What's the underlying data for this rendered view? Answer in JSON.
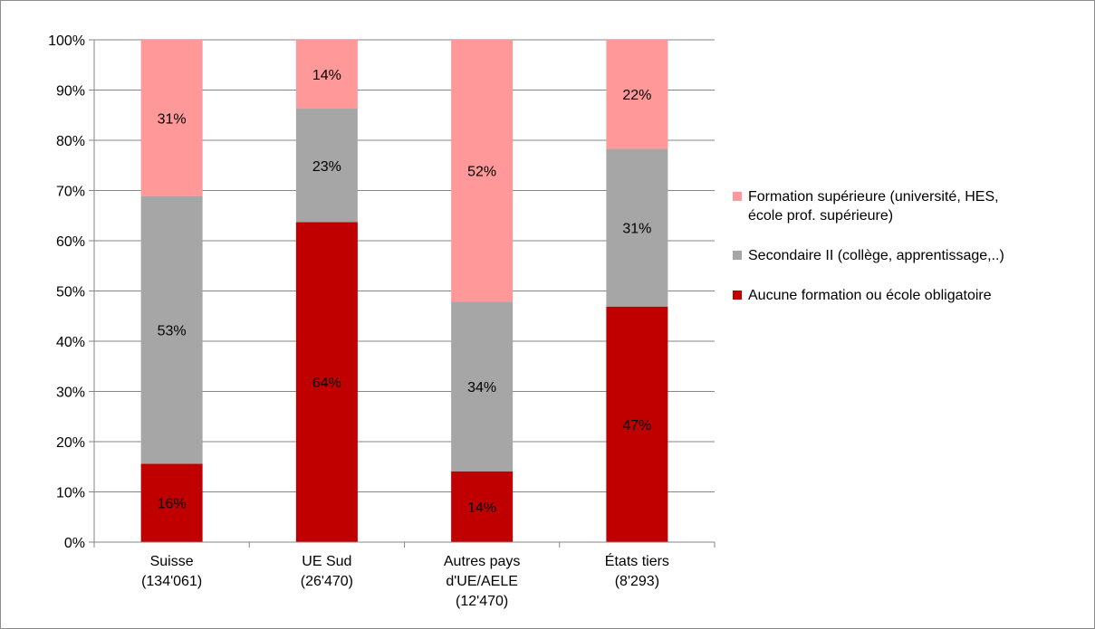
{
  "chart_data": {
    "type": "bar",
    "stacked": true,
    "categories": [
      [
        "Suisse",
        "(134'061)"
      ],
      [
        "UE Sud",
        "(26'470)"
      ],
      [
        "Autres pays",
        "d'UE/AELE",
        "(12'470)"
      ],
      [
        "États tiers",
        "(8'293)"
      ]
    ],
    "series": [
      {
        "name": "Aucune formation ou école obligatoire",
        "color": "#c00000",
        "values": [
          15.6,
          63.7,
          14.1,
          46.9
        ],
        "labels": [
          "16%",
          "64%",
          "14%",
          "47%"
        ]
      },
      {
        "name": "Secondaire II (collège, apprentissage,..)",
        "color": "#a6a6a6",
        "values": [
          53.3,
          22.6,
          33.8,
          31.4
        ],
        "labels": [
          "53%",
          "23%",
          "34%",
          "31%"
        ]
      },
      {
        "name": "Formation supérieure (université, HES, école prof. supérieure)",
        "color": "#ff9999",
        "values": [
          31.1,
          13.7,
          52.1,
          21.7
        ],
        "labels": [
          "31%",
          "14%",
          "52%",
          "22%"
        ]
      }
    ],
    "legend_lines": [
      [
        "Formation supérieure (université, HES,",
        "école prof. supérieure)"
      ],
      [
        "Secondaire II (collège, apprentissage,..)"
      ],
      [
        "Aucune formation ou école obligatoire"
      ]
    ],
    "legend_order": [
      2,
      1,
      0
    ],
    "ylim": [
      0,
      100
    ],
    "yticks": [
      "0%",
      "10%",
      "20%",
      "30%",
      "40%",
      "50%",
      "60%",
      "70%",
      "80%",
      "90%",
      "100%"
    ],
    "grid": true,
    "legend_position": "right"
  }
}
